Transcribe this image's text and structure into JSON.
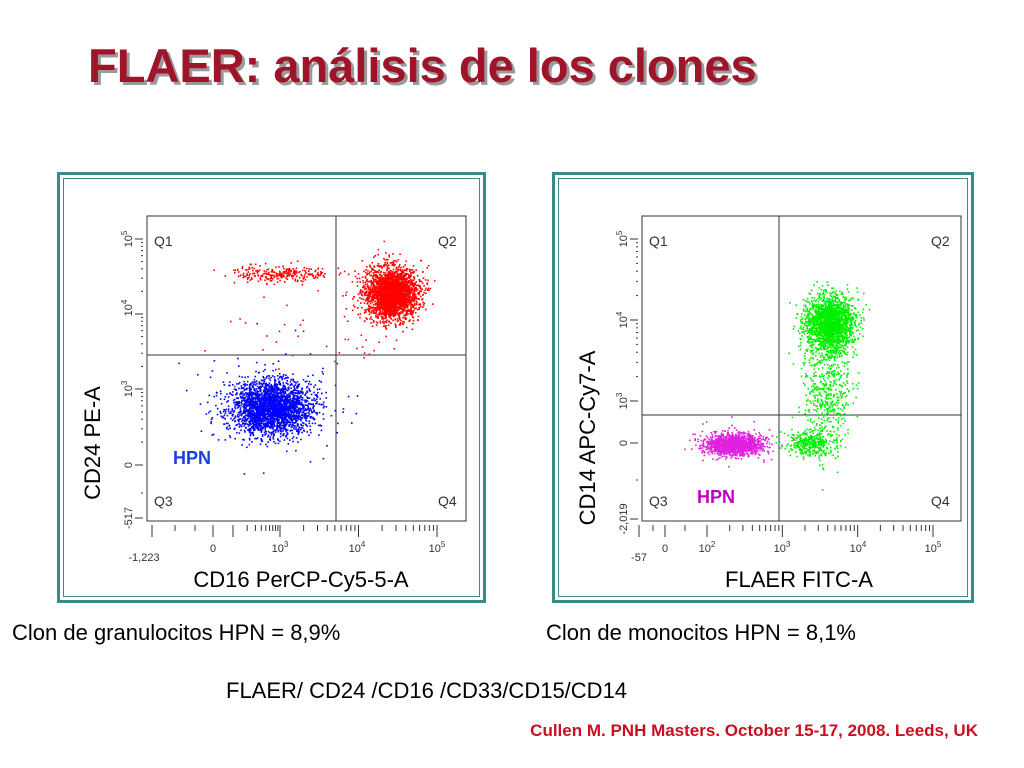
{
  "slide": {
    "title": "FLAER: análisis de los clones",
    "caption_left": "Clon de granulocitos HPN = 8,9%",
    "caption_right": "Clon de monocitos HPN = 8,1%",
    "panel_markers": "FLAER/ CD24 /CD16 /CD33/CD15/CD14",
    "citation": "Cullen M.  PNH Masters. October 15-17, 2008. Leeds, UK"
  },
  "colors": {
    "title": "#a0142a",
    "citation": "#c8101e",
    "frame": "#3a8a8a"
  },
  "chart_data": [
    {
      "type": "scatter",
      "xlabel": "CD16 PerCP-Cy5-5-A",
      "ylabel": "CD24 PE-A",
      "x_ticks": [
        "0",
        "10^3",
        "10^4",
        "10^5"
      ],
      "x_min_label": "-1,223",
      "y_ticks": [
        "-517",
        "0",
        "10^3",
        "10^4",
        "10^5"
      ],
      "quadrants": [
        "Q1",
        "Q2",
        "Q3",
        "Q4"
      ],
      "annotation": {
        "text": "HPN",
        "color": "#1a3fe0"
      },
      "scale": "biexponential",
      "populations": [
        {
          "color": "#ff0000",
          "quadrant": "Q2",
          "center": [
            "2x10^4",
            "2x10^4"
          ]
        },
        {
          "color": "#ff0000",
          "quadrant": "Q1",
          "center": [
            "10^3",
            "4x10^4"
          ]
        },
        {
          "color": "#0000ff",
          "quadrant": "Q3",
          "center": [
            "5x10^2",
            "5x10^2"
          ]
        }
      ]
    },
    {
      "type": "scatter",
      "xlabel": "FLAER FITC-A",
      "ylabel": "CD14 APC-Cy7-A",
      "x_ticks": [
        "-57",
        "0",
        "10^2",
        "10^3",
        "10^4",
        "10^5"
      ],
      "y_ticks": [
        "-2,019",
        "0",
        "10^3",
        "10^4",
        "10^5"
      ],
      "quadrants": [
        "Q1",
        "Q2",
        "Q3",
        "Q4"
      ],
      "annotation": {
        "text": "HPN",
        "color": "#c000c0"
      },
      "scale": "biexponential",
      "populations": [
        {
          "color": "#00ee00",
          "quadrant": "Q2",
          "center": [
            "5x10^3",
            "10^4"
          ]
        },
        {
          "color": "#00ee00",
          "quadrant": "Q4",
          "center": [
            "3x10^3",
            "0"
          ]
        },
        {
          "color": "#e020e0",
          "quadrant": "Q3",
          "center": [
            "3x10^2",
            "0"
          ]
        }
      ]
    }
  ]
}
